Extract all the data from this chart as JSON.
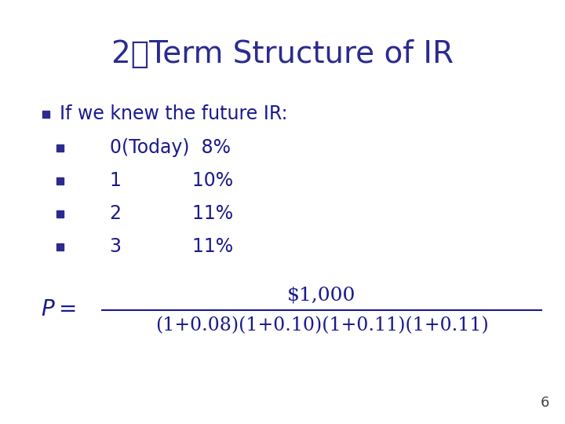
{
  "title": "2、Term Structure of IR",
  "title_color": "#2b2b8f",
  "title_fontsize": 28,
  "bullet_color": "#2b2b8f",
  "text_color": "#1a1a8c",
  "background_color": "#ffffff",
  "bullet_items": [
    {
      "indent": 0,
      "label": "",
      "value": "If we knew the future IR:"
    },
    {
      "indent": 1,
      "label": "0(Today)",
      "value": "8%"
    },
    {
      "indent": 1,
      "label": "1",
      "value": "10%"
    },
    {
      "indent": 1,
      "label": "2",
      "value": "11%"
    },
    {
      "indent": 1,
      "label": "3",
      "value": "11%"
    }
  ],
  "formula_p": "P =",
  "formula_numerator": "$1,000",
  "formula_denominator": "(1+0.08)(1+0.10)(1+0.11)(1+0.11)",
  "page_number": "6",
  "bullet_fontsize": 17,
  "formula_fontsize": 18
}
